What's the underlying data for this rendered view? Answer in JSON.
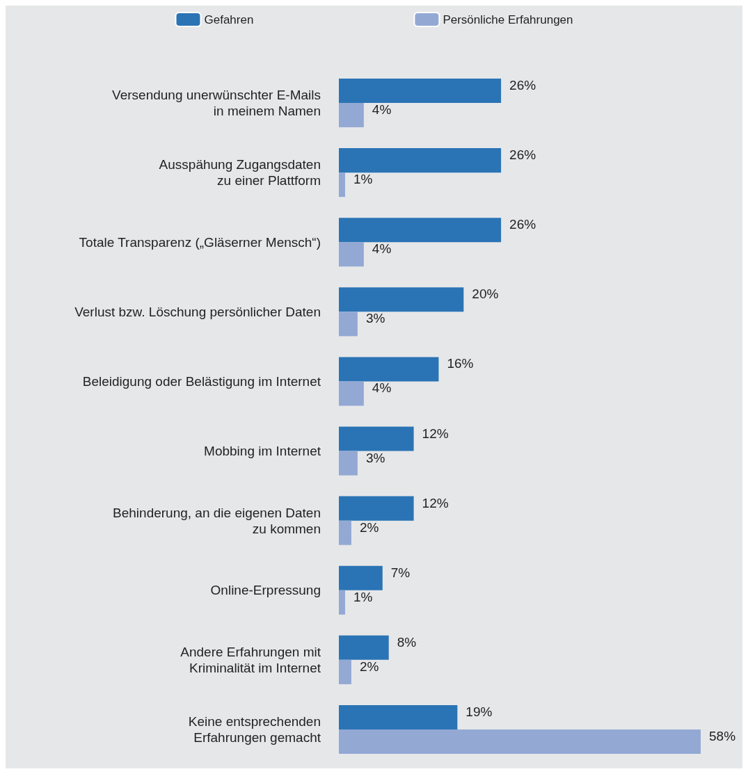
{
  "chart_data": {
    "type": "bar",
    "orientation": "horizontal",
    "legend": "top",
    "grid": false,
    "categories": [
      "Versendung unerwünschter E-Mails\nin meinem Namen",
      "Ausspähung Zugangsdaten\nzu einer Plattform",
      "Totale Transparenz („Gläserner Mensch“)",
      "Verlust bzw. Löschung persönlicher Daten",
      "Beleidigung oder Belästigung im Internet",
      "Mobbing im Internet",
      "Behinderung, an die eigenen Daten\nzu kommen",
      "Online-Erpressung",
      "Andere Erfahrungen mit\nKriminalität im Internet",
      "Keine entsprechenden\nErfahrungen gemacht"
    ],
    "series": [
      {
        "name": "Gefahren",
        "color": "#2a74b5",
        "values": [
          26,
          26,
          26,
          20,
          16,
          12,
          12,
          7,
          8,
          19
        ],
        "value_labels": [
          "26%",
          "26%",
          "26%",
          "20%",
          "16%",
          "12%",
          "12%",
          "7%",
          "8%",
          "19%"
        ]
      },
      {
        "name": "Persönliche Erfahrungen",
        "color": "#93a9d4",
        "values": [
          4,
          1,
          4,
          3,
          4,
          3,
          2,
          1,
          2,
          58
        ],
        "value_labels": [
          "4%",
          "1%",
          "4%",
          "3%",
          "4%",
          "3%",
          "2%",
          "1%",
          "2%",
          "58%"
        ]
      }
    ]
  }
}
